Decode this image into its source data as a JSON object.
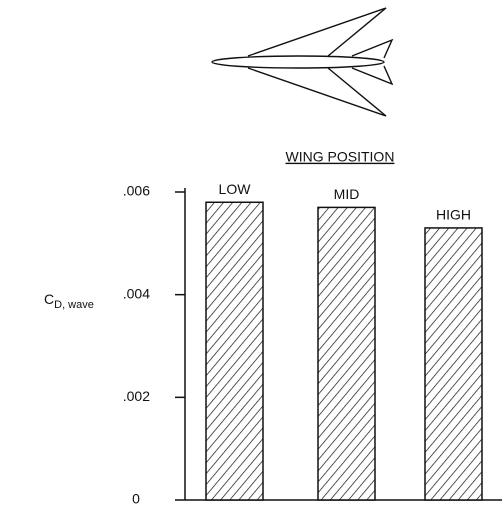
{
  "chart_data": {
    "type": "bar",
    "title": "WING POSITION",
    "y_label": "C",
    "y_label_subscript": "D, wave",
    "categories": [
      "LOW",
      "MID",
      "HIGH"
    ],
    "values": [
      0.0058,
      0.0057,
      0.0053
    ],
    "color": "#111111",
    "ylim": [
      0,
      0.006
    ],
    "yticks": [
      0,
      {
        "value": 0.002,
        "label": ".002"
      },
      {
        "value": 0.004,
        "label": ".004"
      },
      {
        "value": 0.006,
        "label": ".006"
      }
    ]
  }
}
